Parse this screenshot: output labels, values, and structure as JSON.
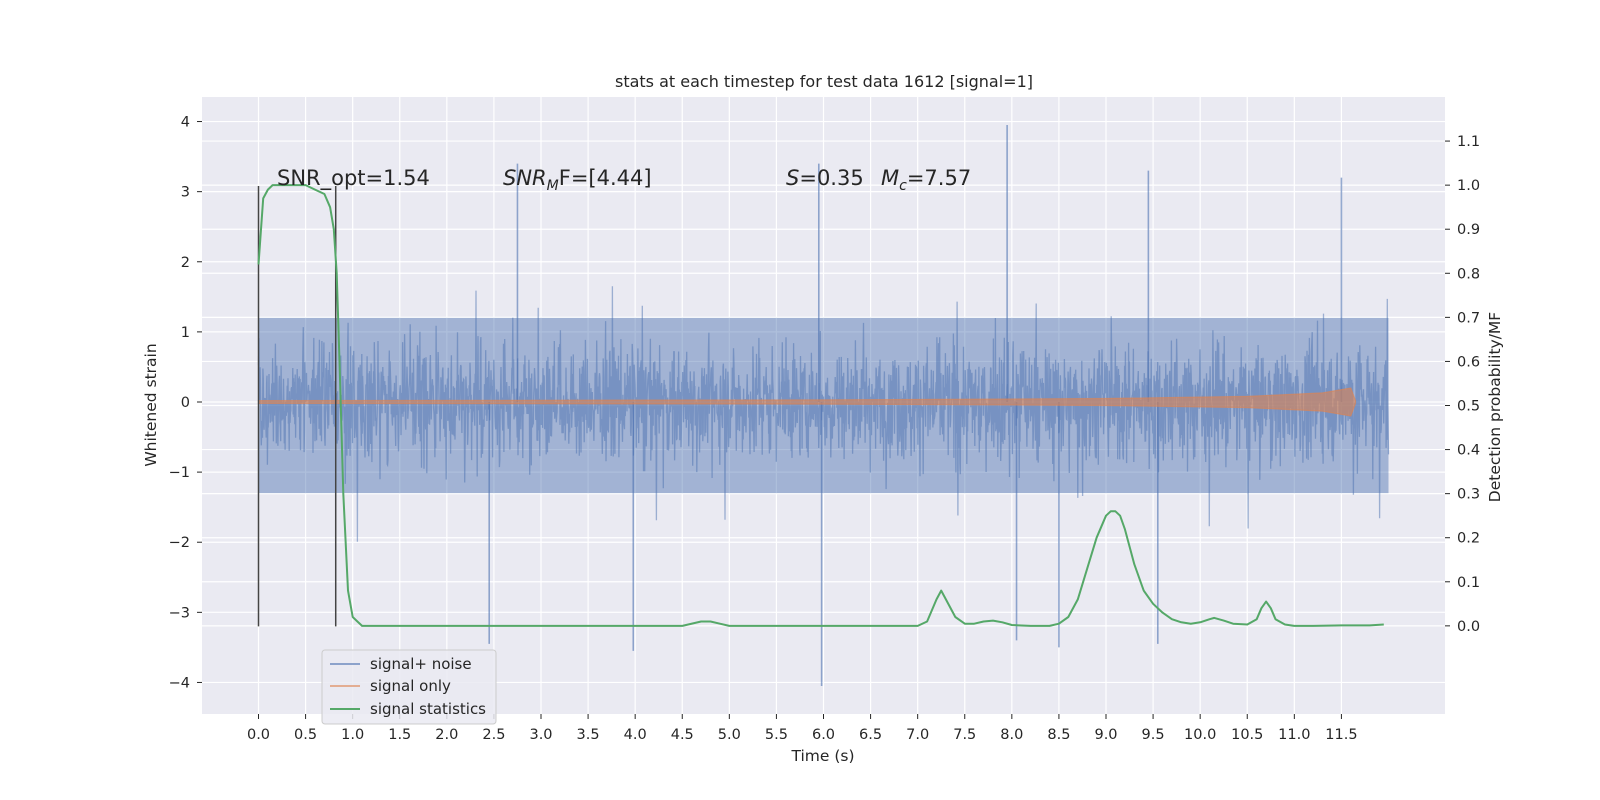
{
  "chart_data": {
    "type": "line",
    "title": "stats at each timestep for test data 1612 [signal=1]",
    "xlabel": "Time (s)",
    "ylabel_left": "Whitened strain",
    "ylabel_right": "Detection probability/MF",
    "xlim": [
      -0.6,
      12.6
    ],
    "ylim_left": [
      -4.45,
      4.35
    ],
    "ylim_right": [
      -0.2,
      1.2
    ],
    "x_ticks": [
      "0.0",
      "0.5",
      "1.0",
      "1.5",
      "2.0",
      "2.5",
      "3.0",
      "3.5",
      "4.0",
      "4.5",
      "5.0",
      "5.5",
      "6.0",
      "6.5",
      "7.0",
      "7.5",
      "8.0",
      "8.5",
      "9.0",
      "9.5",
      "10.0",
      "10.5",
      "11.0",
      "11.5"
    ],
    "y_ticks_left": [
      "4",
      "3",
      "2",
      "1",
      "0",
      "−1",
      "−2",
      "−3",
      "−4"
    ],
    "y_ticks_right": [
      "1.1",
      "1.0",
      "0.9",
      "0.8",
      "0.7",
      "0.6",
      "0.5",
      "0.4",
      "0.3",
      "0.2",
      "0.1",
      "0.0"
    ],
    "grid": true,
    "legend_position": "lower-left",
    "annotations": {
      "snr_opt": "SNR_opt=1.54",
      "snr_mf_main": "SNR",
      "snr_mf_sub": "M",
      "snr_mf_rest": "F=[4.44]",
      "s_label": "S",
      "s_value": "=0.35",
      "mc_label": "M",
      "mc_sub": "c",
      "mc_value": "=7.57"
    },
    "vertical_markers": [
      0.0,
      0.82
    ],
    "series": [
      {
        "name": "signal+ noise",
        "color": "#4c72b0",
        "description_of_envelope": {
          "core_band": [
            -1.3,
            1.2
          ],
          "typical_peaks": [
            2.2,
            -2.2
          ],
          "time_range": [
            0.0,
            12.0
          ]
        },
        "notable_spikes": [
          {
            "x": 7.95,
            "y": 3.95
          },
          {
            "x": 5.95,
            "y": 3.4
          },
          {
            "x": 9.45,
            "y": 3.3
          },
          {
            "x": 11.5,
            "y": 3.2
          },
          {
            "x": 2.75,
            "y": 3.4
          },
          {
            "x": 5.98,
            "y": -4.05
          },
          {
            "x": 3.98,
            "y": -3.55
          },
          {
            "x": 2.45,
            "y": -3.45
          },
          {
            "x": 9.55,
            "y": -3.45
          },
          {
            "x": 8.5,
            "y": -3.5
          },
          {
            "x": 8.05,
            "y": -3.4
          }
        ]
      },
      {
        "name": "signal only",
        "color": "#dd8452",
        "description": "near-zero chirp growing toward the end",
        "envelope": [
          [
            0.0,
            0.02
          ],
          [
            6.0,
            0.03
          ],
          [
            9.0,
            0.05
          ],
          [
            10.5,
            0.08
          ],
          [
            11.3,
            0.13
          ],
          [
            11.6,
            0.2
          ],
          [
            11.65,
            0.02
          ]
        ]
      },
      {
        "name": "signal statistics",
        "color": "#55a868",
        "axis": "right",
        "x": [
          0.0,
          0.05,
          0.1,
          0.15,
          0.2,
          0.3,
          0.4,
          0.5,
          0.6,
          0.7,
          0.76,
          0.8,
          0.83,
          0.86,
          0.9,
          0.95,
          1.0,
          1.05,
          1.1,
          1.2,
          1.5,
          2.0,
          2.5,
          3.0,
          3.5,
          4.0,
          4.3,
          4.5,
          4.7,
          4.8,
          4.9,
          5.0,
          5.2,
          5.5,
          5.8,
          6.0,
          6.5,
          7.0,
          7.1,
          7.2,
          7.25,
          7.3,
          7.4,
          7.5,
          7.6,
          7.7,
          7.8,
          7.9,
          8.0,
          8.2,
          8.4,
          8.5,
          8.6,
          8.7,
          8.8,
          8.9,
          9.0,
          9.05,
          9.1,
          9.15,
          9.2,
          9.3,
          9.4,
          9.5,
          9.6,
          9.7,
          9.8,
          9.9,
          10.0,
          10.1,
          10.15,
          10.25,
          10.35,
          10.5,
          10.6,
          10.65,
          10.7,
          10.75,
          10.8,
          10.9,
          11.0,
          11.2,
          11.5,
          11.8,
          11.95
        ],
        "values": [
          0.82,
          0.97,
          0.99,
          1.0,
          1.0,
          1.0,
          1.0,
          1.0,
          0.99,
          0.98,
          0.95,
          0.9,
          0.8,
          0.6,
          0.3,
          0.08,
          0.02,
          0.01,
          0.0,
          0.0,
          0.0,
          0.0,
          0.0,
          0.0,
          0.0,
          0.0,
          0.0,
          0.0,
          0.01,
          0.01,
          0.005,
          0.0,
          0.0,
          0.0,
          0.0,
          0.0,
          0.0,
          0.0,
          0.01,
          0.06,
          0.08,
          0.06,
          0.02,
          0.005,
          0.005,
          0.01,
          0.012,
          0.008,
          0.002,
          0.0,
          0.0,
          0.005,
          0.02,
          0.06,
          0.13,
          0.2,
          0.25,
          0.26,
          0.26,
          0.25,
          0.22,
          0.14,
          0.08,
          0.05,
          0.03,
          0.015,
          0.008,
          0.005,
          0.008,
          0.015,
          0.018,
          0.012,
          0.005,
          0.003,
          0.015,
          0.04,
          0.055,
          0.04,
          0.015,
          0.003,
          0.0,
          0.0,
          0.001,
          0.001,
          0.003
        ]
      }
    ]
  }
}
